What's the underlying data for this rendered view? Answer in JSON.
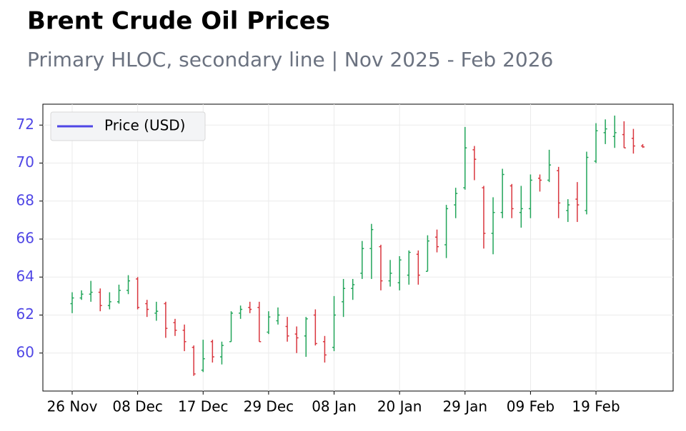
{
  "chart_data": {
    "type": "ohlc",
    "title": "Brent Crude Oil Prices",
    "subtitle": "Primary HLOC, secondary line | Nov 2025 - Feb 2026",
    "categories": [
      "26 Nov",
      null,
      null,
      null,
      null,
      null,
      null,
      "08 Dec",
      null,
      null,
      null,
      null,
      null,
      null,
      "17 Dec",
      null,
      null,
      null,
      null,
      null,
      null,
      "29 Dec",
      null,
      null,
      null,
      null,
      null,
      null,
      "08 Jan",
      null,
      null,
      null,
      null,
      null,
      null,
      "20 Jan",
      null,
      null,
      null,
      null,
      null,
      null,
      "29 Jan",
      null,
      null,
      null,
      null,
      null,
      null,
      "09 Feb",
      null,
      null,
      null,
      null,
      null,
      null,
      "19 Feb",
      null,
      null,
      null,
      null,
      null
    ],
    "series": [
      {
        "name": "Price (USD)",
        "color": "#4f46e5",
        "up_color": "#22a55a",
        "down_color": "#d9363e",
        "open": [
          62.6,
          62.9,
          63.1,
          63.2,
          62.5,
          62.7,
          63.3,
          63.9,
          62.6,
          62.1,
          62.6,
          61.6,
          61.2,
          60.3,
          59.1,
          60.6,
          59.8,
          60.6,
          62.1,
          62.4,
          62.4,
          61.1,
          61.7,
          61.4,
          61.0,
          60.9,
          62.0,
          60.6,
          60.3,
          62.7,
          63.4,
          64.2,
          65.5,
          65.6,
          63.8,
          63.7,
          64.1,
          65.2,
          64.3,
          66.1,
          65.7,
          67.8,
          68.7,
          70.7,
          68.7,
          66.3,
          67.4,
          68.8,
          67.4,
          67.6,
          69.2,
          69.1,
          69.6,
          67.5,
          68.1,
          67.5,
          70.1,
          71.6,
          71.4,
          71.5,
          71.3,
          70.9
        ],
        "high": [
          63.2,
          63.3,
          63.8,
          63.4,
          63.2,
          63.6,
          64.1,
          64.0,
          62.8,
          62.7,
          62.7,
          61.8,
          61.5,
          60.4,
          60.7,
          60.7,
          60.6,
          62.2,
          62.5,
          62.7,
          62.7,
          62.2,
          62.4,
          61.9,
          61.4,
          61.9,
          62.3,
          60.9,
          63.0,
          63.9,
          63.9,
          65.9,
          66.8,
          65.7,
          64.9,
          65.1,
          65.4,
          65.4,
          66.2,
          66.5,
          67.8,
          68.7,
          71.9,
          70.9,
          68.8,
          68.2,
          69.7,
          68.9,
          68.8,
          69.4,
          69.4,
          70.7,
          69.8,
          68.1,
          69.0,
          70.6,
          72.1,
          72.3,
          72.5,
          72.2,
          71.8,
          71.0
        ],
        "low": [
          62.1,
          62.8,
          62.7,
          62.2,
          62.3,
          62.6,
          63.1,
          62.3,
          61.9,
          61.7,
          60.8,
          60.9,
          60.1,
          58.8,
          59.0,
          59.5,
          59.4,
          60.6,
          61.8,
          62.1,
          60.6,
          61.0,
          61.5,
          60.6,
          60.0,
          59.8,
          60.4,
          59.5,
          60.1,
          61.9,
          62.8,
          63.9,
          63.9,
          63.3,
          63.5,
          63.3,
          63.6,
          63.6,
          64.3,
          65.3,
          65.0,
          67.1,
          68.6,
          69.1,
          65.5,
          65.2,
          67.1,
          67.1,
          66.6,
          67.1,
          68.5,
          69.0,
          67.1,
          66.9,
          66.9,
          67.3,
          70.0,
          71.0,
          70.8,
          70.8,
          70.5,
          70.8
        ],
        "close": [
          62.9,
          63.1,
          63.2,
          62.5,
          62.7,
          63.3,
          63.8,
          62.4,
          62.3,
          62.2,
          61.3,
          61.2,
          60.6,
          58.9,
          59.7,
          59.8,
          60.4,
          62.1,
          62.3,
          62.3,
          60.6,
          61.9,
          62.0,
          60.9,
          60.8,
          61.8,
          60.5,
          59.9,
          62.0,
          63.4,
          63.6,
          65.5,
          66.5,
          63.8,
          64.2,
          64.9,
          65.3,
          64.1,
          65.9,
          65.6,
          67.6,
          68.4,
          70.8,
          70.2,
          66.3,
          67.4,
          69.4,
          67.6,
          67.6,
          69.1,
          69.1,
          69.9,
          67.9,
          67.8,
          67.8,
          70.3,
          71.7,
          71.8,
          71.6,
          70.8,
          70.9,
          70.85
        ]
      }
    ],
    "ylim": [
      58,
      73.1
    ],
    "yticks": [
      60,
      62,
      64,
      66,
      68,
      70,
      72
    ],
    "grid": true,
    "legend": "upper left"
  }
}
